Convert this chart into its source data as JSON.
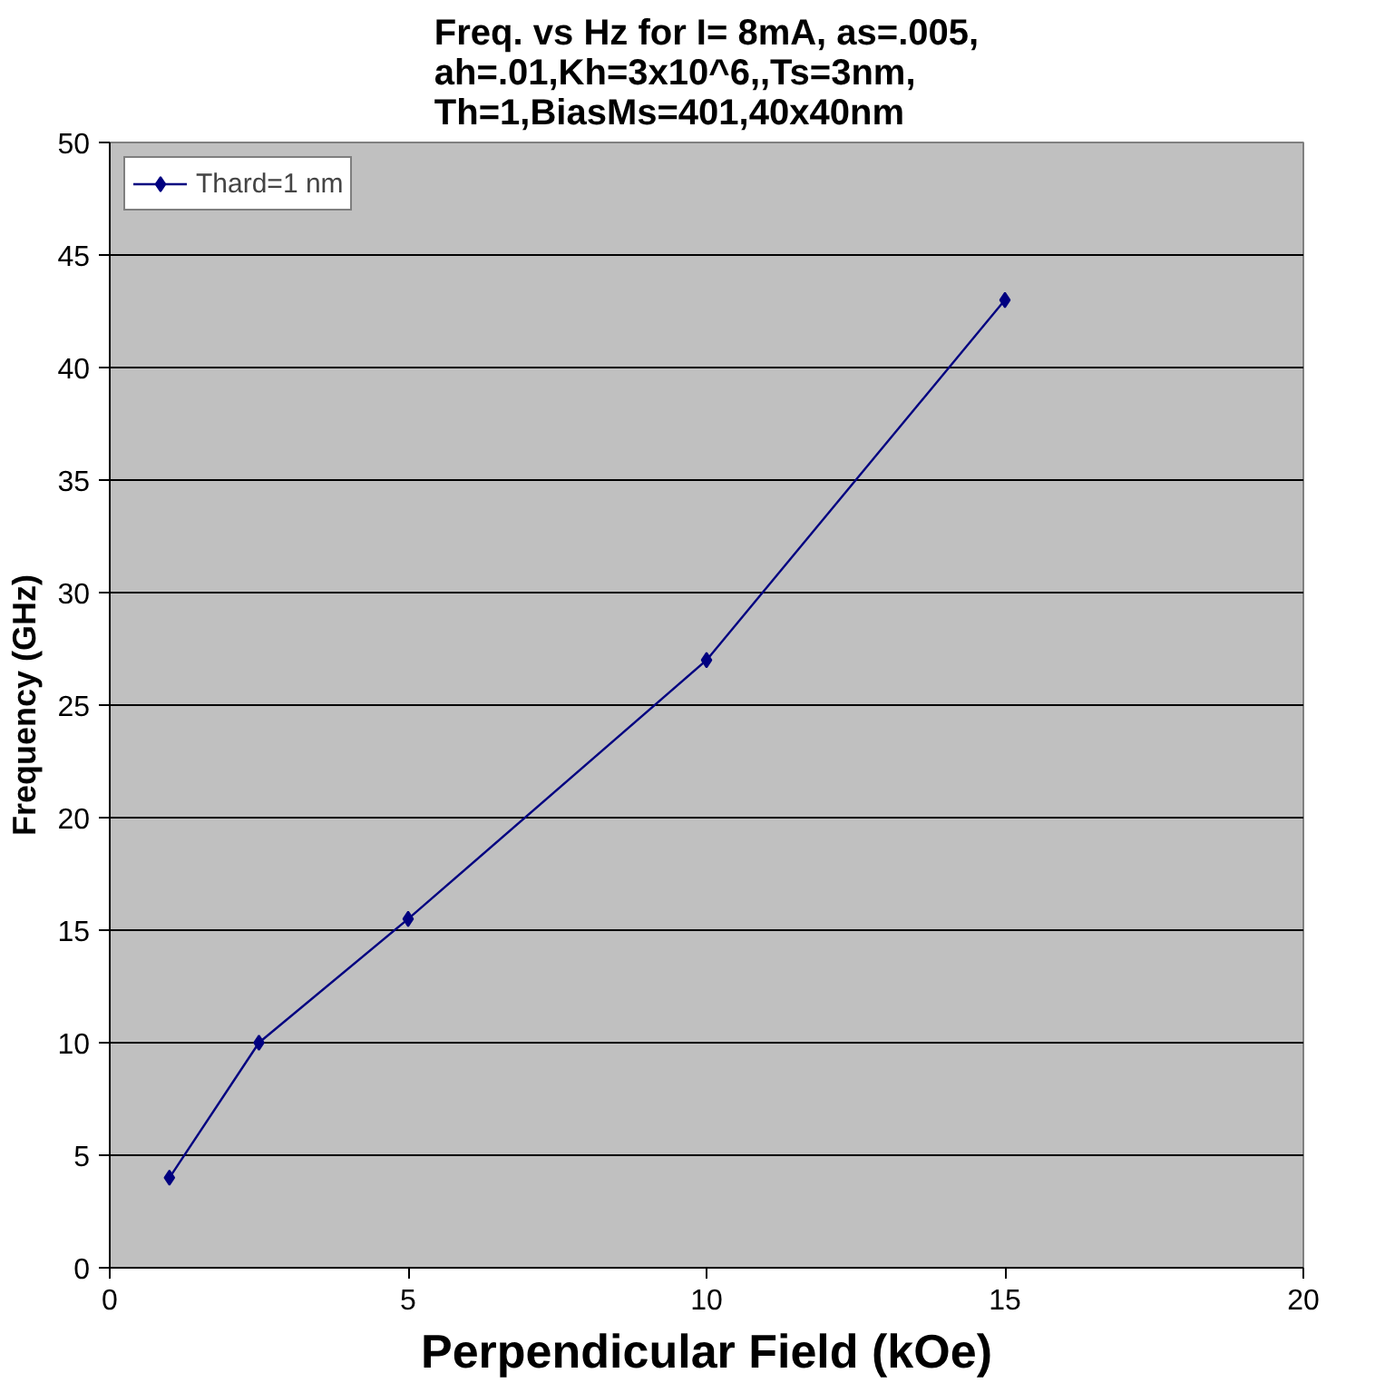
{
  "chart_data": {
    "type": "line",
    "title": "Freq. vs Hz for I= 8mA, as=.005,\nah=.01,Kh=3x10^6,,Ts=3nm,\nTh=1,BiasMs=401,40x40nm",
    "xlabel": "Perpendicular Field (kOe)",
    "ylabel": "Frequency (GHz)",
    "x": [
      1,
      2.5,
      5,
      10,
      15
    ],
    "series": [
      {
        "name": "Thard=1 nm",
        "color": "#000080",
        "values": [
          4,
          10,
          15.5,
          27,
          43
        ]
      }
    ],
    "xlim": [
      0,
      20
    ],
    "xticks": [
      0,
      5,
      10,
      15,
      20
    ],
    "ylim": [
      0,
      50
    ],
    "yticks": [
      0,
      5,
      10,
      15,
      20,
      25,
      30,
      35,
      40,
      45,
      50
    ],
    "grid": "y",
    "legend": "top left",
    "marker": "diamond",
    "line_style": "solid"
  }
}
